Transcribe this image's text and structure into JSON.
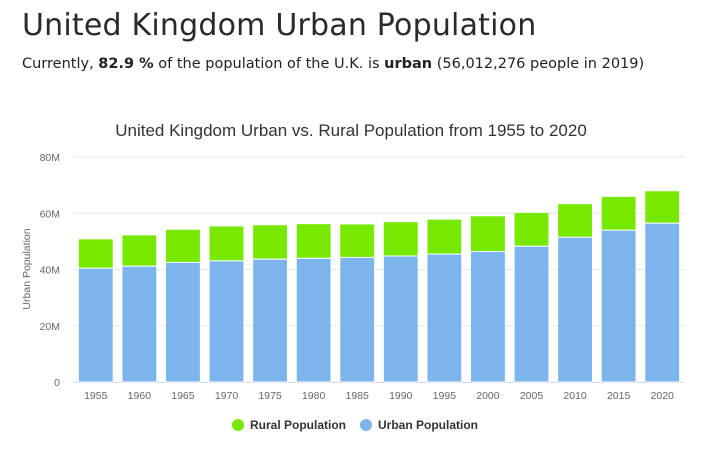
{
  "page": {
    "title": "United Kingdom Urban Population",
    "summary": {
      "prefix": "Currently,",
      "percent": "82.9 %",
      "middle": "of the population of the U.K. is",
      "keyword": "urban",
      "suffix": "(56,012,276 people in 2019)"
    }
  },
  "colors": {
    "rural": "#77e800",
    "urban": "#7cb5ec",
    "grid": "#e6e6e6"
  },
  "chart_data": {
    "type": "bar",
    "stacked": true,
    "title": "United Kingdom Urban vs. Rural Population from 1955 to 2020",
    "ylabel": "Urban Population",
    "xlabel": "",
    "ylim": [
      0,
      80000000
    ],
    "yticks": [
      {
        "value": 0,
        "label": "0"
      },
      {
        "value": 20000000,
        "label": "20M"
      },
      {
        "value": 40000000,
        "label": "40M"
      },
      {
        "value": 60000000,
        "label": "60M"
      },
      {
        "value": 80000000,
        "label": "80M"
      }
    ],
    "grid": true,
    "legend_position": "bottom-center",
    "categories": [
      "1955",
      "1960",
      "1965",
      "1970",
      "1975",
      "1980",
      "1985",
      "1990",
      "1995",
      "2000",
      "2005",
      "2010",
      "2015",
      "2020"
    ],
    "series": [
      {
        "name": "Urban Population",
        "key": "urban",
        "values": [
          40500000,
          41200000,
          42500000,
          43100000,
          43700000,
          44000000,
          44300000,
          44800000,
          45500000,
          46400000,
          48300000,
          51500000,
          54000000,
          56500000
        ]
      },
      {
        "name": "Rural Population",
        "key": "rural",
        "values": [
          10400000,
          11100000,
          11800000,
          12400000,
          12200000,
          12300000,
          11900000,
          12200000,
          12400000,
          12700000,
          12000000,
          11900000,
          12000000,
          11500000
        ]
      }
    ],
    "legend": [
      {
        "name": "Rural Population",
        "key": "rural"
      },
      {
        "name": "Urban Population",
        "key": "urban"
      }
    ]
  }
}
